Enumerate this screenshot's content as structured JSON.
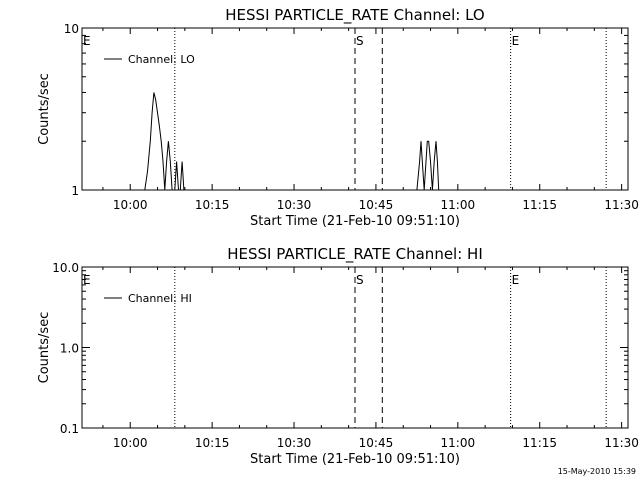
{
  "chart_data": [
    {
      "type": "line",
      "title": "HESSI PARTICLE_RATE Channel: LO",
      "xlabel": "Start Time (21-Feb-10 09:51:10)",
      "ylabel": "Counts/sec",
      "yscale": "log",
      "ylim": [
        1,
        10
      ],
      "ytick_labels": [
        "1",
        "10"
      ],
      "xlim": [
        "09:51:10",
        "11:31:10"
      ],
      "xtick_labels": [
        "10:00",
        "10:15",
        "10:30",
        "10:45",
        "11:00",
        "11:15",
        "11:30"
      ],
      "legend": {
        "entries": [
          "Channel: LO"
        ],
        "placement": "top-left"
      },
      "grid": false,
      "series": [
        {
          "name": "Channel: LO",
          "x": [
            "10:02:10",
            "10:02:40",
            "10:03:10",
            "10:03:40",
            "10:04:00",
            "10:04:20",
            "10:04:40",
            "10:05:00",
            "10:05:20",
            "10:05:40",
            "10:06:00",
            "10:06:20",
            "10:06:40",
            "10:07:00",
            "10:07:20",
            "10:07:40",
            "10:07:55",
            "10:08:10",
            "10:08:30",
            "10:08:50",
            "10:09:10",
            "10:09:30",
            "10:09:50",
            "10:10:10",
            "10:10:30",
            "10:52:30",
            "10:53:00",
            "10:53:15",
            "10:53:30",
            "10:53:50",
            "10:54:10",
            "10:54:25",
            "10:54:40",
            "10:55:00",
            "10:55:20",
            "10:55:40",
            "10:56:00",
            "10:56:15",
            "10:56:30",
            "10:56:50"
          ],
          "y": [
            1,
            1,
            1.3,
            2,
            3,
            4,
            3.6,
            3,
            2.5,
            2,
            1.5,
            1,
            1.5,
            2,
            1.5,
            1,
            1,
            1,
            1.5,
            1,
            1,
            1.5,
            1,
            1,
            1,
            1,
            1.5,
            2,
            1.5,
            1,
            1.5,
            2,
            2,
            1.5,
            1,
            1.5,
            2,
            1.5,
            1,
            1
          ]
        }
      ],
      "annotations": [
        {
          "label": "E",
          "x": "09:51:10",
          "style": "dotted"
        },
        {
          "label": "",
          "x": "10:08:10",
          "style": "dotted"
        },
        {
          "label": "S",
          "x": "10:41:10",
          "style": "dashed"
        },
        {
          "label": "",
          "x": "10:46:10",
          "style": "dashed"
        },
        {
          "label": "E",
          "x": "11:09:40",
          "style": "dotted"
        },
        {
          "label": "",
          "x": "11:27:10",
          "style": "dotted"
        }
      ]
    },
    {
      "type": "line",
      "title": "HESSI PARTICLE_RATE Channel: HI",
      "xlabel": "Start Time (21-Feb-10 09:51:10)",
      "ylabel": "Counts/sec",
      "yscale": "log",
      "ylim": [
        0.1,
        10
      ],
      "ytick_labels": [
        "0.1",
        "1.0",
        "10.0"
      ],
      "xlim": [
        "09:51:10",
        "11:31:10"
      ],
      "xtick_labels": [
        "10:00",
        "10:15",
        "10:30",
        "10:45",
        "11:00",
        "11:15",
        "11:30"
      ],
      "legend": {
        "entries": [
          "Channel: HI"
        ],
        "placement": "top-left"
      },
      "grid": false,
      "series": [
        {
          "name": "Channel: HI",
          "x": [],
          "y": []
        }
      ],
      "annotations": [
        {
          "label": "E",
          "x": "09:51:10",
          "style": "dotted"
        },
        {
          "label": "",
          "x": "10:08:10",
          "style": "dotted"
        },
        {
          "label": "S",
          "x": "10:41:10",
          "style": "dashed"
        },
        {
          "label": "",
          "x": "10:46:10",
          "style": "dashed"
        },
        {
          "label": "E",
          "x": "11:09:40",
          "style": "dotted"
        },
        {
          "label": "",
          "x": "11:27:10",
          "style": "dotted"
        }
      ]
    }
  ],
  "footer": {
    "timestamp": "15-May-2010 15:39"
  }
}
